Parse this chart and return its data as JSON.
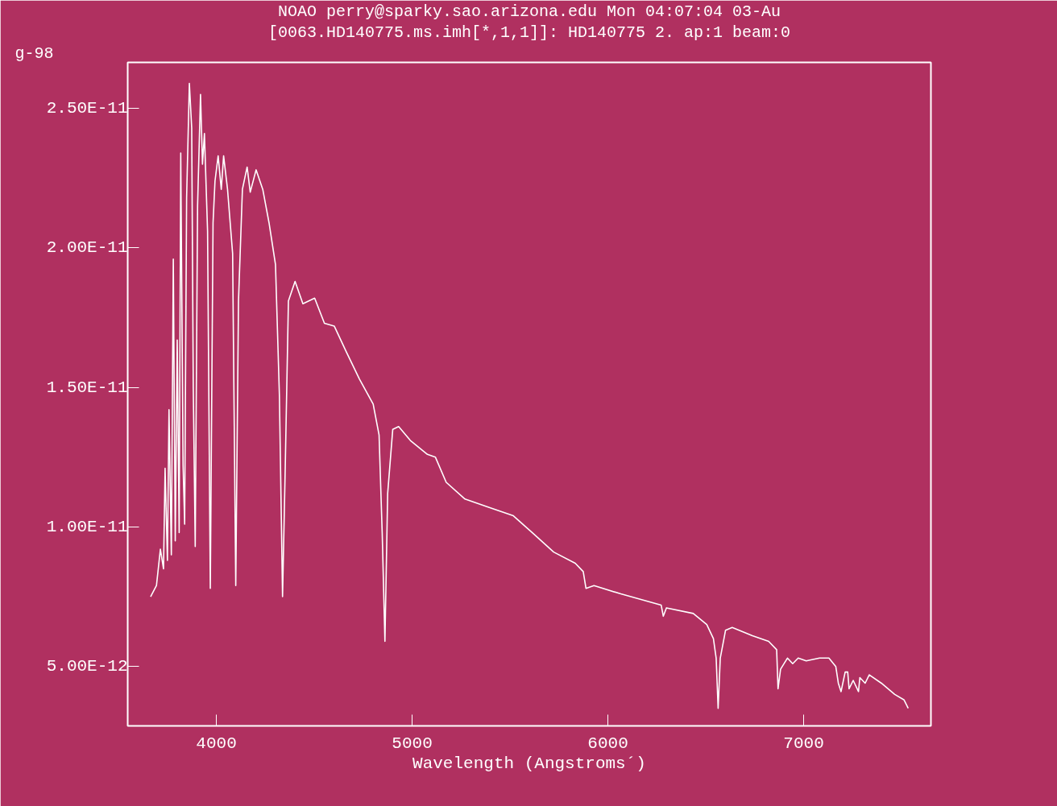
{
  "chart_data": {
    "type": "line",
    "title": "NOAO perry@sparky.sao.arizona.edu Mon 04:07:04 03-Au",
    "subtitle": "[0063.HD140775.ms.imh[*,1,1]]: HD140775 2. ap:1 beam:0",
    "xlabel": "Wavelength (Angstroms´)",
    "annotations": [
      "g-98"
    ],
    "x": [
      3664,
      3694,
      3714,
      3730,
      3738,
      3750,
      3758,
      3770,
      3780,
      3790,
      3800,
      3810,
      3818,
      3830,
      3838,
      3848,
      3862,
      3874,
      3882,
      3892,
      3904,
      3919,
      3929,
      3939,
      3955,
      3969,
      3983,
      3993,
      4009,
      4025,
      4037,
      4057,
      4083,
      4099,
      4113,
      4133,
      4157,
      4173,
      4203,
      4237,
      4269,
      4302,
      4322,
      4338,
      4352,
      4368,
      4402,
      4442,
      4502,
      4552,
      4602,
      4662,
      4731,
      4801,
      4831,
      4847,
      4861,
      4875,
      4901,
      4931,
      4991,
      5078,
      5119,
      5174,
      5270,
      5394,
      5517,
      5613,
      5723,
      5833,
      5874,
      5888,
      5929,
      6066,
      6272,
      6283,
      6299,
      6436,
      6505,
      6539,
      6553,
      6563,
      6574,
      6601,
      6635,
      6738,
      6821,
      6862,
      6869,
      6882,
      6917,
      6944,
      6972,
      7013,
      7081,
      7129,
      7164,
      7177,
      7191,
      7212,
      7225,
      7232,
      7253,
      7280,
      7287,
      7314,
      7335,
      7397,
      7465,
      7513,
      7534
    ],
    "series": [
      {
        "color": "#ffffff",
        "values": [
          7.5e-12,
          7.9e-12,
          9.2e-12,
          8.5e-12,
          1.21e-11,
          8.8e-12,
          1.42e-11,
          9e-12,
          1.96e-11,
          9.5e-12,
          1.67e-11,
          9.8e-12,
          2.34e-11,
          1.22e-11,
          1.01e-11,
          2.18e-11,
          2.59e-11,
          2.43e-11,
          1.5e-11,
          9.3e-12,
          2.15e-11,
          2.55e-11,
          2.3e-11,
          2.41e-11,
          2.06e-11,
          7.8e-12,
          2.09e-11,
          2.24e-11,
          2.33e-11,
          2.21e-11,
          2.33e-11,
          2.21e-11,
          1.98e-11,
          7.9e-12,
          1.81e-11,
          2.21e-11,
          2.29e-11,
          2.2e-11,
          2.28e-11,
          2.21e-11,
          2.09e-11,
          1.94e-11,
          1.47e-11,
          7.5e-12,
          1.22e-11,
          1.81e-11,
          1.88e-11,
          1.8e-11,
          1.82e-11,
          1.73e-11,
          1.72e-11,
          1.63e-11,
          1.53e-11,
          1.44e-11,
          1.33e-11,
          9.8e-12,
          5.9e-12,
          1.12e-11,
          1.35e-11,
          1.36e-11,
          1.31e-11,
          1.26e-11,
          1.25e-11,
          1.16e-11,
          1.1e-11,
          1.07e-11,
          1.04e-11,
          9.8e-12,
          9.1e-12,
          8.7e-12,
          8.4e-12,
          7.8e-12,
          7.9e-12,
          7.6e-12,
          7.2e-12,
          6.8e-12,
          7.1e-12,
          6.9e-12,
          6.5e-12,
          6e-12,
          5.3e-12,
          3.5e-12,
          5.3e-12,
          6.3e-12,
          6.4e-12,
          6.1e-12,
          5.9e-12,
          5.6e-12,
          4.2e-12,
          4.9e-12,
          5.3e-12,
          5.1e-12,
          5.3e-12,
          5.2e-12,
          5.3e-12,
          5.3e-12,
          5e-12,
          4.4e-12,
          4.1e-12,
          4.8e-12,
          4.8e-12,
          4.2e-12,
          4.5e-12,
          4.1e-12,
          4.6e-12,
          4.4e-12,
          4.7e-12,
          4.4e-12,
          4e-12,
          3.8e-12,
          3.5e-12
        ]
      }
    ],
    "xlim": [
      3547,
      7650
    ],
    "ylim": [
      2.87e-12,
      2.665e-11
    ],
    "xticks": [
      4000,
      5000,
      6000,
      7000
    ],
    "yticks": [
      {
        "value": 5e-12,
        "label": "5.00E-12"
      },
      {
        "value": 1e-11,
        "label": "1.00E-11"
      },
      {
        "value": 1.5e-11,
        "label": "1.50E-11"
      },
      {
        "value": 2e-11,
        "label": "2.00E-11"
      },
      {
        "value": 2.5e-11,
        "label": "2.50E-11"
      }
    ],
    "grid": false,
    "marker": "none",
    "line_style": "solid"
  }
}
